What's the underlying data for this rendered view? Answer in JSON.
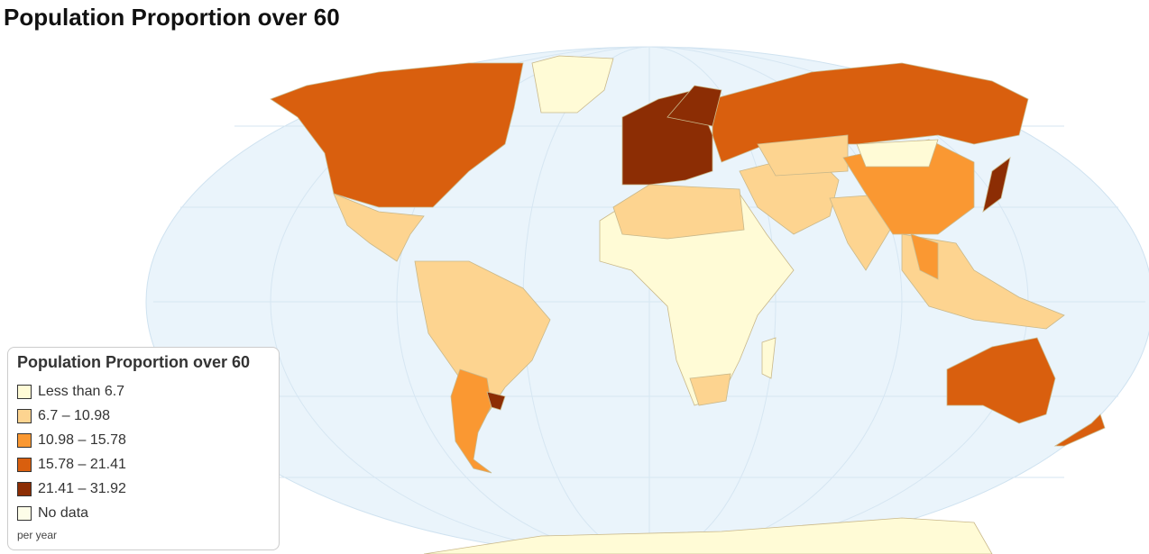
{
  "title": "Population Proportion over 60",
  "legend": {
    "title": "Population Proportion over 60",
    "items": [
      {
        "label": "Less than 6.7",
        "color": "#fffbd6"
      },
      {
        "label": "6.7 – 10.98",
        "color": "#fdd490"
      },
      {
        "label": "10.98 – 15.78",
        "color": "#fa9832"
      },
      {
        "label": "15.78 – 21.41",
        "color": "#d95f0e"
      },
      {
        "label": "21.41 – 31.92",
        "color": "#8c2d04"
      },
      {
        "label": "No data",
        "color": "#fdfde8"
      }
    ],
    "footer": "per year"
  }
}
